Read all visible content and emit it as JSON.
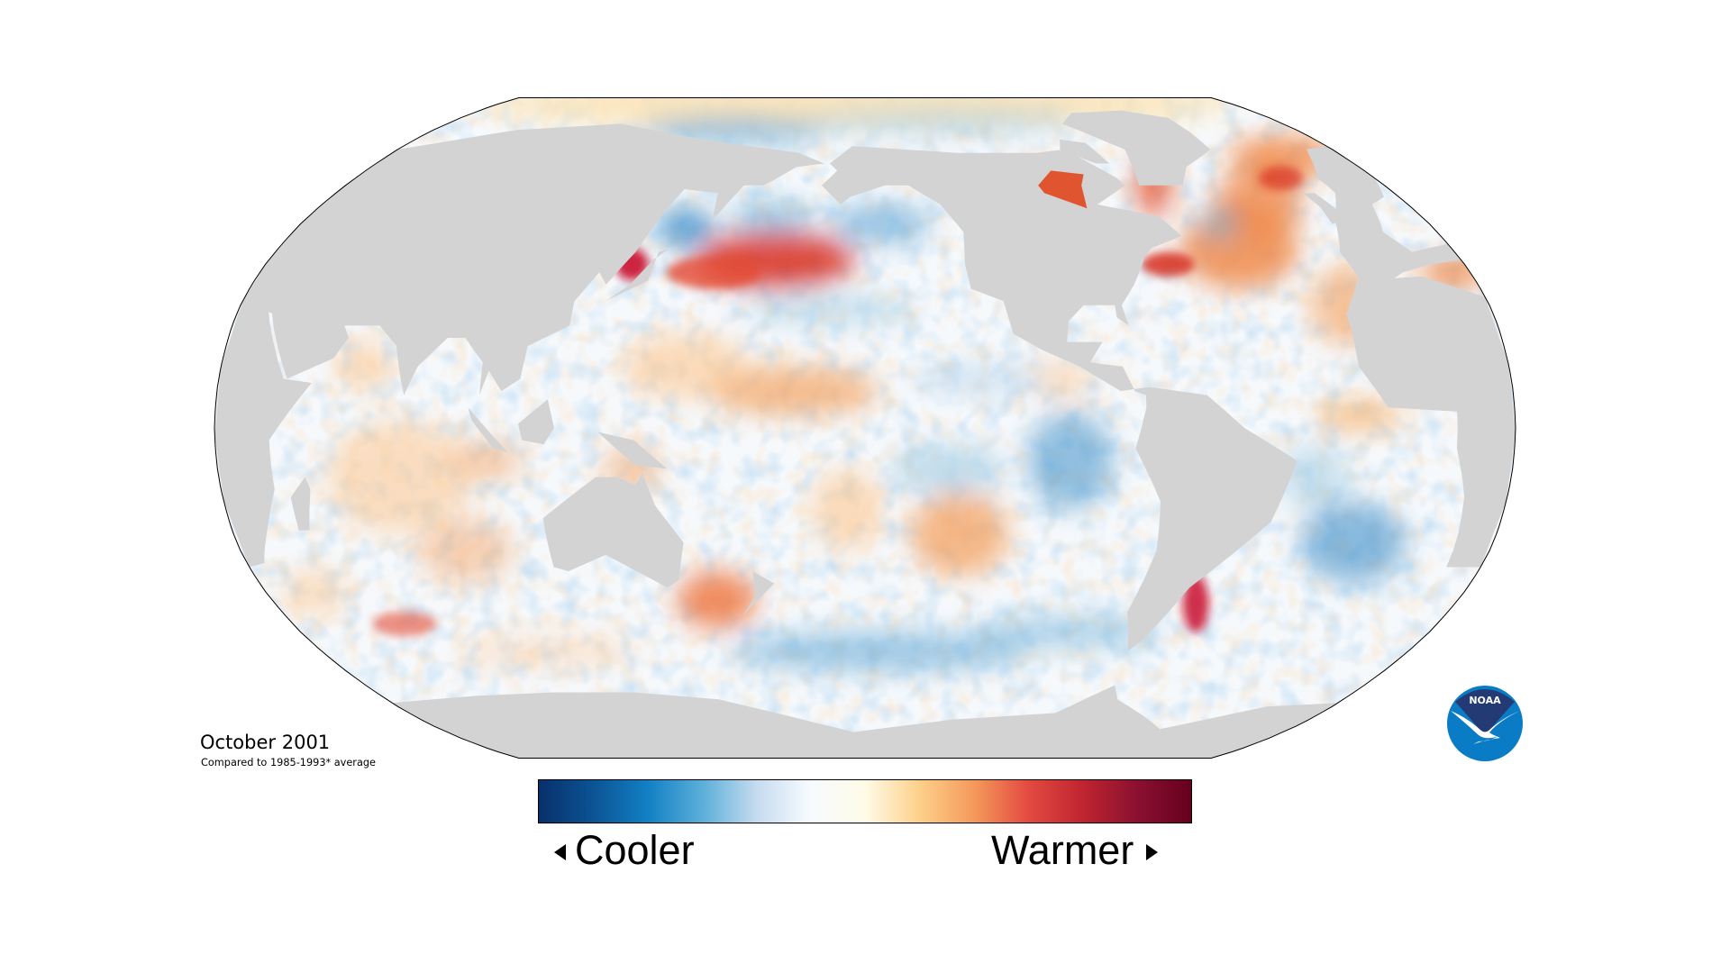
{
  "map": {
    "title": "October 2001",
    "subtitle": "Compared to 1985-1993* average",
    "projection": "robinson",
    "land_color": "#d3d3d3",
    "border_color": "#000000"
  },
  "legend": {
    "cooler_label": "Cooler",
    "warmer_label": "Warmer",
    "left_arrow_icon": "triangle-left-icon",
    "right_arrow_icon": "triangle-right-icon",
    "colors": [
      "#08306b",
      "#0b5394",
      "#1280c4",
      "#5aaed9",
      "#c6dbef",
      "#f7fbff",
      "#fffbe8",
      "#fdd08a",
      "#f59a5c",
      "#e34a40",
      "#c02530",
      "#8b1030",
      "#67001f"
    ]
  },
  "logo": {
    "text": "NOAA",
    "top_color": "#233a75",
    "bottom_color": "#0a7cc6"
  }
}
